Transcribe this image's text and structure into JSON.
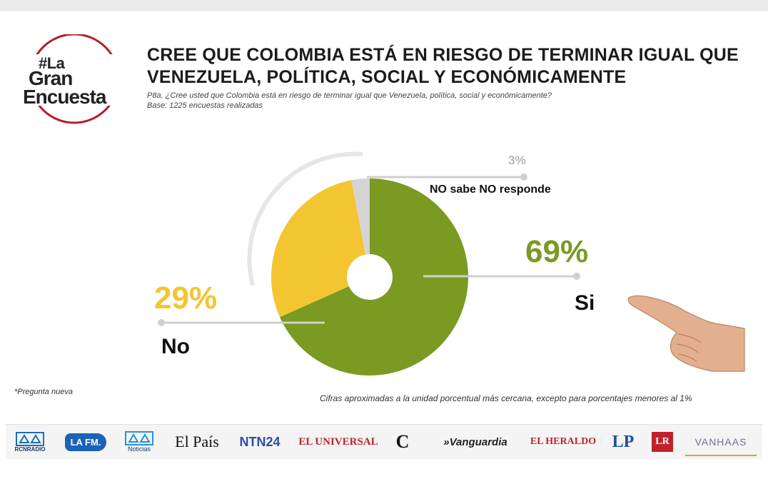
{
  "logo": {
    "line1": "#La",
    "line2": "Gran",
    "line3": "Encuesta"
  },
  "header": {
    "title_line1": "CREE QUE COLOMBIA ESTÁ EN RIESGO DE TERMINAR IGUAL QUE",
    "title_line2": "VENEZUELA, POLÍTICA, SOCIAL Y ECONÓMICAMENTE",
    "question": "P8a. ¿Cree usted que Colombia está en riesgo de terminar igual que Venezuela, política, social y económicamente?",
    "base": "Base: 1225  encuestas realizadas"
  },
  "chart_data": {
    "type": "pie",
    "donut": true,
    "slices": [
      {
        "label": "Si",
        "value": 69,
        "display": "69%",
        "color": "#7a9a22"
      },
      {
        "label": "No",
        "value": 29,
        "display": "29%",
        "color": "#f3c531"
      },
      {
        "label": "NO sabe NO responde",
        "value": 3,
        "display": "3%",
        "color": "#d4d4d4"
      }
    ]
  },
  "notes": {
    "left": "*Pregunta nueva",
    "right": "Cifras aproximadas a la unidad porcentual más cercana, excepto para porcentajes menores al 1%"
  },
  "footer": {
    "brands": [
      {
        "id": "rcn-radio",
        "text": "RCNRADIO"
      },
      {
        "id": "la-fm",
        "text": "LA FM."
      },
      {
        "id": "noticias",
        "text": "Noticias"
      },
      {
        "id": "el-pais",
        "text": "El País"
      },
      {
        "id": "ntn24",
        "text": "NTN24"
      },
      {
        "id": "el-universal",
        "text": "EL UNIVERSAL"
      },
      {
        "id": "colombiano",
        "text": "C"
      },
      {
        "id": "vanguardia",
        "text": "»Vanguardia"
      },
      {
        "id": "el-heraldo",
        "text": "EL HERALDO"
      },
      {
        "id": "lp",
        "text": "LP"
      },
      {
        "id": "lr",
        "text": "LR"
      },
      {
        "id": "vanhaas",
        "text": "VANHAAS"
      }
    ]
  }
}
